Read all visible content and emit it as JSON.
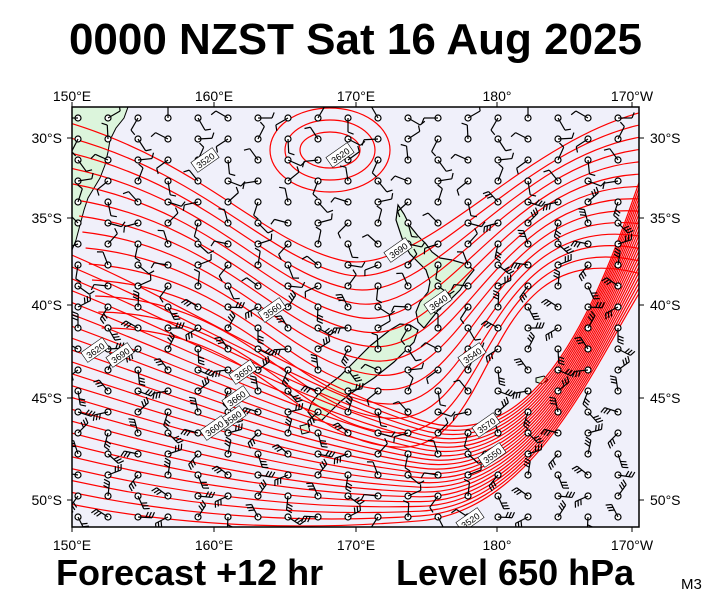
{
  "header": {
    "title": "0000 NZST Sat 16 Aug 2025"
  },
  "footer": {
    "forecast": "Forecast +12 hr",
    "level": "Level 650 hPa",
    "corner_code": "M3"
  },
  "map": {
    "projection": "lat-lon",
    "lon_ticks": [
      "150°E",
      "160°E",
      "170°E",
      "180°",
      "170°W"
    ],
    "lat_ticks": [
      "30°S",
      "35°S",
      "40°S",
      "45°S",
      "50°S"
    ],
    "lon_range": [
      150,
      190
    ],
    "lat_range": [
      -28,
      -51.5
    ],
    "colors": {
      "ocean": "#f0f0fa",
      "land": "#dcf5dc",
      "contour": "#ff0000",
      "coastline": "#000000",
      "barb": "#000000"
    },
    "contour_labels": [
      "3520",
      "3620",
      "3690",
      "3640",
      "3560",
      "3650",
      "3660",
      "3580",
      "3600",
      "3540",
      "3570",
      "3550"
    ]
  }
}
